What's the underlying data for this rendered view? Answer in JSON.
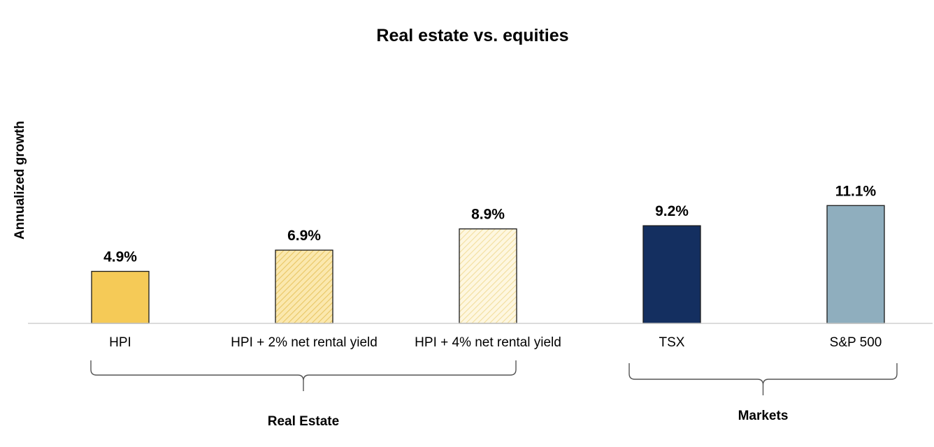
{
  "chart_data": {
    "type": "bar",
    "title": "Real estate vs. equities",
    "xlabel": "",
    "ylabel": "Annualized growth",
    "ylim": [
      0,
      11.5
    ],
    "grid": false,
    "legend": "none",
    "categories": [
      "HPI",
      "HPI + 2% net rental yield",
      "HPI + 4% net rental yield",
      "TSX",
      "S&P 500"
    ],
    "values": [
      4.9,
      6.9,
      8.9,
      9.2,
      11.1
    ],
    "data_labels": [
      "4.9%",
      "6.9%",
      "8.9%",
      "9.2%",
      "11.1%"
    ],
    "bar_styles": [
      {
        "fill": "#F5CA57",
        "pattern": "solid"
      },
      {
        "fill": "#F7DE8F",
        "pattern": "diagonal-hatch"
      },
      {
        "fill": "#FCF0C6",
        "pattern": "diagonal-hatch"
      },
      {
        "fill": "#142F60",
        "pattern": "solid"
      },
      {
        "fill": "#8FAEBE",
        "pattern": "solid"
      }
    ],
    "groups": [
      {
        "label": "Real Estate",
        "categories": [
          "HPI",
          "HPI + 2% net rental yield",
          "HPI + 4% net rental yield"
        ]
      },
      {
        "label": "Markets",
        "categories": [
          "TSX",
          "S&P 500"
        ]
      }
    ]
  }
}
